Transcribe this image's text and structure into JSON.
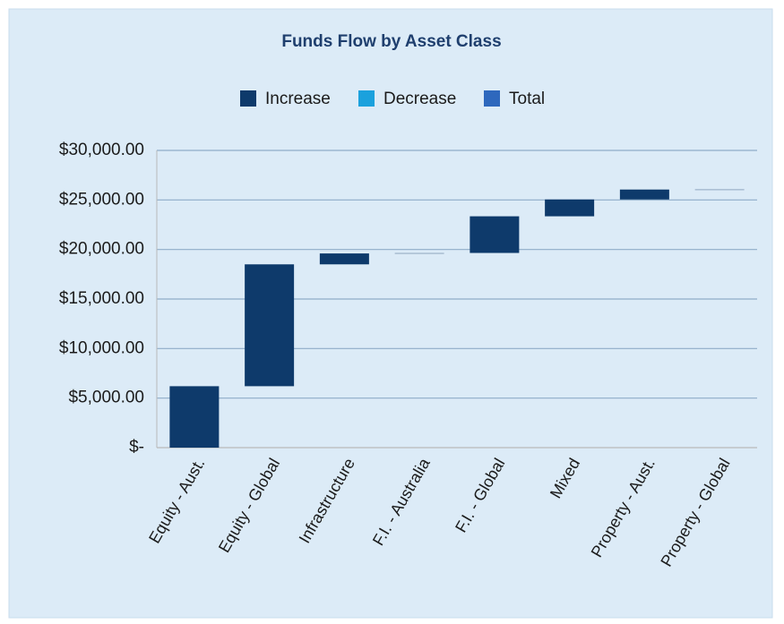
{
  "chart_data": {
    "type": "waterfall",
    "title": "Funds Flow by Asset Class",
    "legend": [
      {
        "name": "Increase",
        "color": "#0e3a6b"
      },
      {
        "name": "Decrease",
        "color": "#1ba1dd"
      },
      {
        "name": "Total",
        "color": "#2e68bd"
      }
    ],
    "categories": [
      "Equity - Aust.",
      "Equity - Global",
      "Infrastructure",
      "F.I. - Australia",
      "F.I. - Global",
      "Mixed",
      "Property - Aust.",
      "Property - Global"
    ],
    "values": [
      6200,
      12300,
      1100,
      50,
      3700,
      1700,
      1000,
      30
    ],
    "ylim": [
      0,
      30000
    ],
    "yticks": [
      {
        "value": 0,
        "label": "$-"
      },
      {
        "value": 5000,
        "label": "$5,000.00"
      },
      {
        "value": 10000,
        "label": "$10,000.00"
      },
      {
        "value": 15000,
        "label": "$15,000.00"
      },
      {
        "value": 20000,
        "label": "$20,000.00"
      },
      {
        "value": 25000,
        "label": "$25,000.00"
      },
      {
        "value": 30000,
        "label": "$30,000.00"
      }
    ],
    "grid": true
  }
}
